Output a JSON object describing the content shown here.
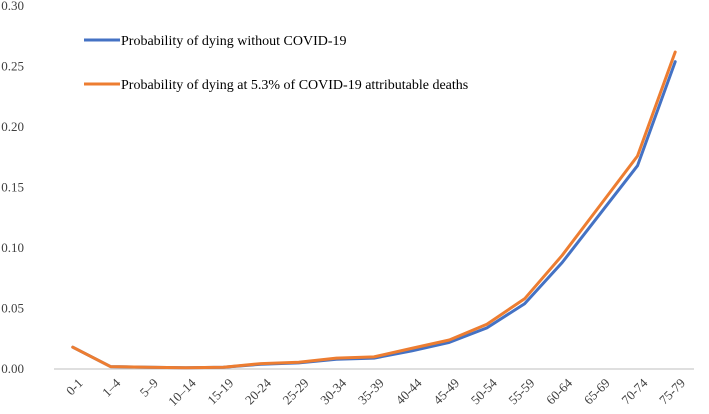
{
  "chart_data": {
    "type": "line",
    "title": "",
    "xlabel": "",
    "ylabel": "",
    "ylim": [
      0,
      0.3
    ],
    "yticks": [
      "0.00",
      "0.05",
      "0.10",
      "0.15",
      "0.20",
      "0.25",
      "0.30"
    ],
    "categories": [
      "0-1",
      "1–4",
      "5–9",
      "10–14",
      "15-19",
      "20-24",
      "25-29",
      "30-34",
      "35-39",
      "40-44",
      "45-49",
      "50-54",
      "55-59",
      "60-64",
      "65-69",
      "70-74",
      "75-79"
    ],
    "legend_position": "top-left",
    "series": [
      {
        "name": "Probability of dying without COVID-19",
        "color": "#4472C4",
        "values": [
          0.018,
          0.002,
          0.0015,
          0.001,
          0.0015,
          0.004,
          0.005,
          0.008,
          0.009,
          0.015,
          0.022,
          0.034,
          0.054,
          0.088,
          0.128,
          0.168,
          0.254
        ]
      },
      {
        "name": "Probability of dying at 5.3% of COVID-19 attributable deaths",
        "color": "#ED7D31",
        "values": [
          0.018,
          0.002,
          0.0015,
          0.001,
          0.0015,
          0.0045,
          0.0055,
          0.009,
          0.01,
          0.017,
          0.024,
          0.037,
          0.058,
          0.094,
          0.135,
          0.176,
          0.262
        ]
      }
    ]
  }
}
